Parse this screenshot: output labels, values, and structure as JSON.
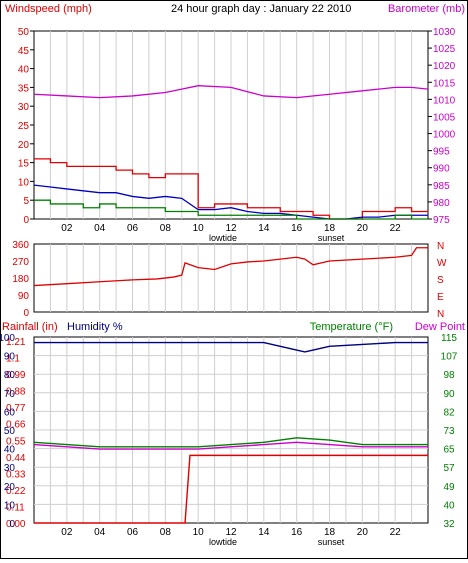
{
  "chart_data": [
    {
      "type": "line",
      "title": "24 hour graph day : January 22 2010",
      "ylabel": "Windspeed (mph)",
      "y2label": "Barometer (mb)",
      "x_ticks": [
        "02",
        "04",
        "06",
        "08",
        "10",
        "12",
        "14",
        "16",
        "18",
        "20",
        "22"
      ],
      "x_annotations": [
        "lowtide",
        "sunset"
      ],
      "ylim": [
        0,
        50
      ],
      "y_ticks": [
        "0",
        "5",
        "10",
        "15",
        "20",
        "25",
        "30",
        "35",
        "40",
        "45",
        "50"
      ],
      "y2lim": [
        975,
        1030
      ],
      "y2_ticks": [
        "975",
        "980",
        "985",
        "990",
        "995",
        "1000",
        "1005",
        "1010",
        "1015",
        "1020",
        "1025",
        "1030"
      ],
      "colors": {
        "gust": "#e00000",
        "speed": "#0000c0",
        "direction": "#008000",
        "barometer": "#cc00cc",
        "grid": "#c8c8c8"
      },
      "series": [
        {
          "key": "barometer",
          "axis": "y2",
          "x": [
            0,
            2,
            4,
            6,
            8,
            9,
            10,
            12,
            14,
            16,
            18,
            20,
            22,
            23,
            24
          ],
          "values": [
            1011.5,
            1011,
            1010.5,
            1011,
            1012,
            1013,
            1014,
            1013.5,
            1011,
            1010.5,
            1011.5,
            1012.5,
            1013.5,
            1013.5,
            1013
          ]
        },
        {
          "key": "gust",
          "axis": "y",
          "step": true,
          "x": [
            0,
            1,
            2,
            3,
            4,
            5,
            6,
            7,
            8,
            9,
            10,
            11,
            12,
            13,
            14,
            15,
            16,
            17,
            18,
            19,
            20,
            21,
            22,
            23,
            24
          ],
          "values": [
            16,
            15,
            14,
            14,
            14,
            13,
            12,
            11,
            12,
            12,
            3,
            4,
            4,
            3,
            3,
            2,
            2,
            1,
            0,
            0,
            2,
            2,
            3,
            2,
            2
          ]
        },
        {
          "key": "speed",
          "axis": "y",
          "x": [
            0,
            1,
            2,
            3,
            4,
            5,
            6,
            7,
            8,
            9,
            10,
            11,
            12,
            13,
            14,
            15,
            16,
            17,
            18,
            19,
            20,
            21,
            22,
            23,
            24
          ],
          "values": [
            9,
            8.5,
            8,
            7.5,
            7,
            7,
            6,
            5.5,
            6,
            5.5,
            2.5,
            2.5,
            3,
            2,
            1.5,
            1.5,
            1,
            0.5,
            0,
            0,
            0.5,
            0.5,
            1,
            1,
            1
          ]
        },
        {
          "key": "direction",
          "axis": "y",
          "step": true,
          "x": [
            0,
            1,
            2,
            3,
            4,
            5,
            6,
            7,
            8,
            9,
            10,
            11,
            12,
            13,
            14,
            15,
            16,
            17,
            18,
            19,
            20,
            21,
            22,
            23,
            24
          ],
          "values": [
            5,
            4,
            4,
            3,
            4,
            3,
            3,
            3,
            2,
            2,
            1,
            1,
            1,
            1,
            1,
            1,
            0,
            0,
            0,
            0,
            0,
            0,
            1,
            0,
            0
          ]
        }
      ]
    },
    {
      "type": "line",
      "y_ticks": [
        "360",
        "270",
        "180",
        "90",
        "0"
      ],
      "ylim": [
        0,
        360
      ],
      "y2_ticks": [
        "N",
        "W",
        "S",
        "E",
        "N"
      ],
      "colors": {
        "direction": "#e00000"
      },
      "series": [
        {
          "key": "wind_direction",
          "x": [
            0,
            2,
            4,
            6,
            7.5,
            8.5,
            9,
            9.2,
            10,
            11,
            12,
            13,
            14,
            15,
            16,
            16.5,
            17,
            18,
            20,
            22,
            23,
            23.3,
            24
          ],
          "values": [
            140,
            150,
            160,
            170,
            175,
            185,
            195,
            260,
            235,
            225,
            255,
            265,
            270,
            280,
            290,
            280,
            250,
            270,
            280,
            290,
            300,
            340,
            340
          ]
        }
      ]
    },
    {
      "type": "line",
      "ylabel": "Rainfall (in)",
      "ylabel2": "Humidity %",
      "y3label": "Temperature (°F)",
      "y4label": "Dew Point",
      "x_ticks": [
        "02",
        "04",
        "06",
        "08",
        "10",
        "12",
        "14",
        "16",
        "18",
        "20",
        "22"
      ],
      "x_annotations": [
        "lowtide",
        "sunset"
      ],
      "rain_ticks": [
        "0.00",
        "0.11",
        "0.22",
        "0.33",
        "0.44",
        "0.55",
        "0.66",
        "0.77",
        "0.88",
        "0.99",
        "1.1",
        "1.21"
      ],
      "humidity_ticks": [
        "0",
        "10",
        "20",
        "30",
        "40",
        "50",
        "60",
        "70",
        "80",
        "90",
        "100"
      ],
      "temp_ticks": [
        "32",
        "40",
        "49",
        "57",
        "65",
        "73",
        "82",
        "90",
        "98",
        "107",
        "115"
      ],
      "rainlim": [
        0,
        1.21
      ],
      "humlim": [
        0,
        100
      ],
      "templim": [
        32,
        115
      ],
      "colors": {
        "rain": "#e00000",
        "humidity": "#000080",
        "temperature": "#008000",
        "dewpoint": "#cc00cc"
      },
      "series": [
        {
          "key": "rain",
          "axis": "rain",
          "x": [
            0,
            9.2,
            9.5,
            24
          ],
          "values": [
            0,
            0,
            0.44,
            0.44
          ]
        },
        {
          "key": "humidity",
          "axis": "hum",
          "x": [
            0,
            2,
            4,
            6,
            8,
            10,
            12,
            14,
            15,
            16,
            16.5,
            17,
            18,
            20,
            22,
            24
          ],
          "values": [
            97,
            97,
            97,
            97,
            97,
            97,
            97,
            97,
            95,
            93,
            92,
            93,
            95,
            96,
            97,
            97
          ]
        },
        {
          "key": "temperature",
          "axis": "temp",
          "x": [
            0,
            2,
            4,
            6,
            8,
            10,
            12,
            14,
            16,
            18,
            20,
            22,
            24
          ],
          "values": [
            68,
            67,
            66,
            66,
            66,
            66,
            67,
            68,
            70,
            69,
            67,
            67,
            67
          ]
        },
        {
          "key": "dewpoint",
          "axis": "temp",
          "x": [
            0,
            2,
            4,
            6,
            8,
            10,
            12,
            14,
            16,
            18,
            20,
            22,
            24
          ],
          "values": [
            67,
            66,
            65,
            65,
            65,
            65,
            66,
            67,
            68,
            67,
            66,
            66,
            66
          ]
        }
      ]
    }
  ]
}
